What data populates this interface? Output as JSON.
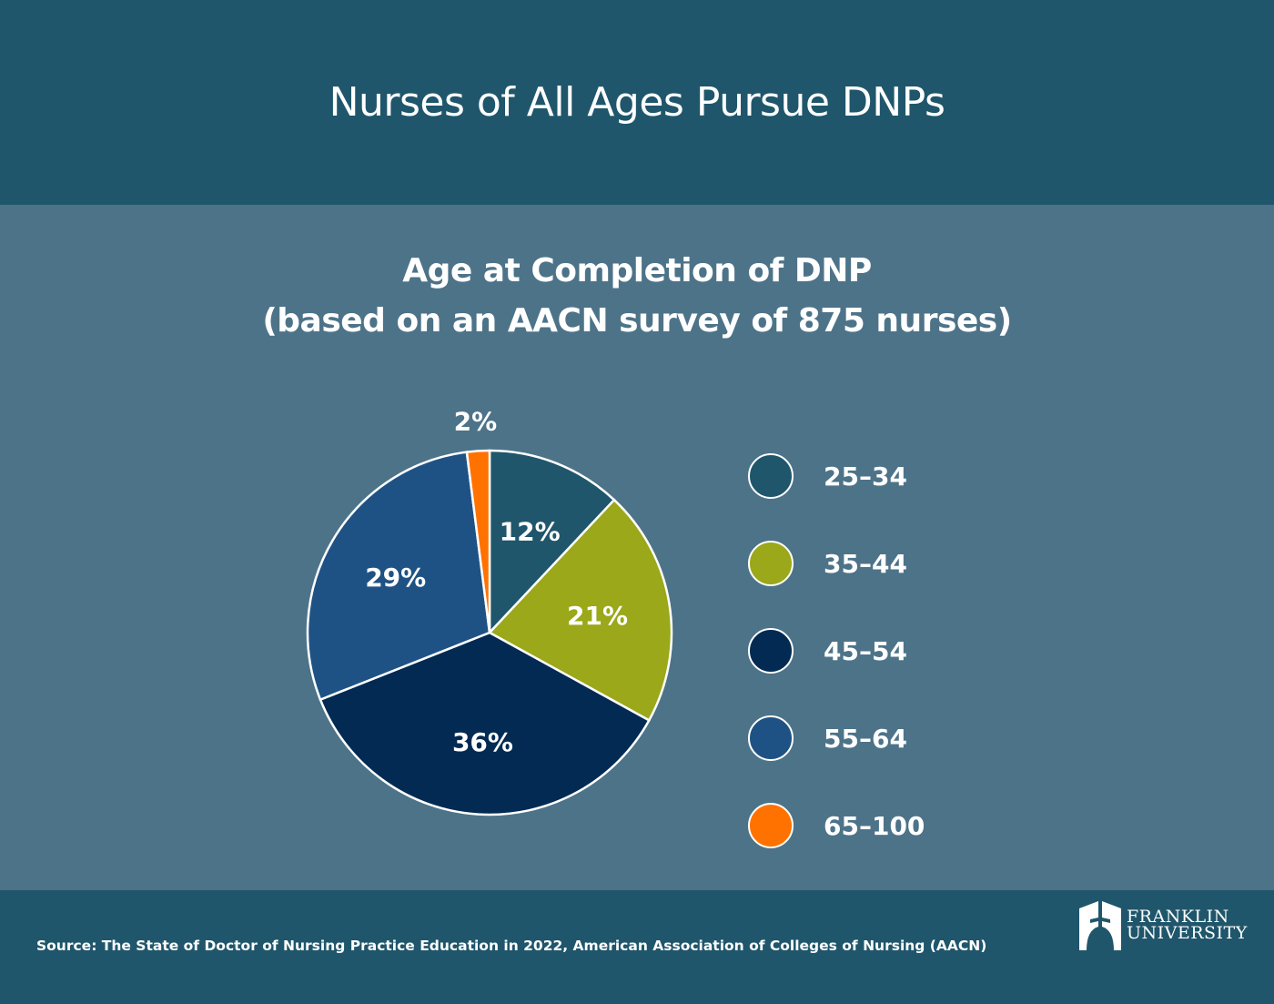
{
  "header": {
    "title": "Nurses of All Ages Pursue DNPs"
  },
  "chart_data": {
    "type": "pie",
    "title": "Age at Completion of DNP",
    "subtitle": "(based on an AACN survey of 875 nurses)",
    "categories": [
      "25–34",
      "35–44",
      "45–54",
      "55–64",
      "65–100"
    ],
    "values": [
      12,
      21,
      36,
      29,
      2
    ],
    "labels": [
      "12%",
      "21%",
      "36%",
      "29%",
      "2%"
    ],
    "colors": [
      "#1f566b",
      "#9aa819",
      "#022a52",
      "#1f5284",
      "#ff7200"
    ],
    "legend_placement": "right"
  },
  "footer": {
    "source": "Source: The State of Doctor of Nursing Practice Education in 2022, American Association of Colleges of Nursing (AACN)",
    "logo_line1": "FRANKLIN",
    "logo_line2": "UNIVERSITY"
  }
}
